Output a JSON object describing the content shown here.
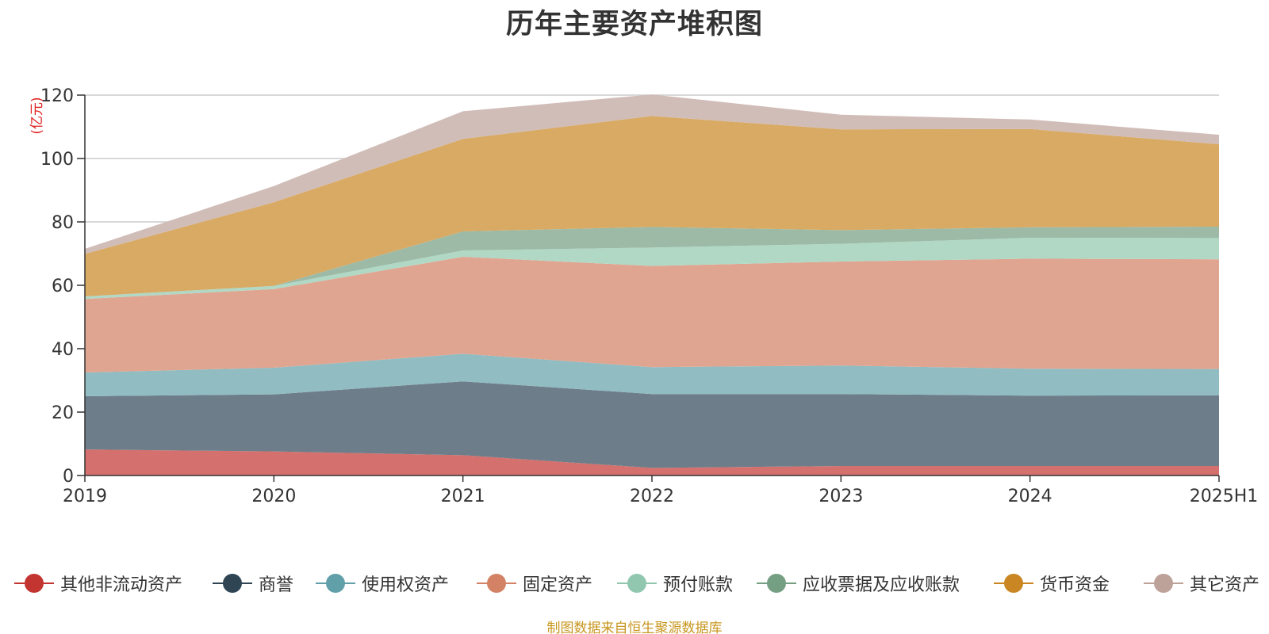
{
  "chart_data": {
    "type": "area",
    "stacked": true,
    "title": "历年主要资产堆积图",
    "unit": "(亿元)",
    "categories": [
      "2019",
      "2020",
      "2021",
      "2022",
      "2023",
      "2024",
      "2025H1"
    ],
    "ylim": [
      0,
      120
    ],
    "yticks": [
      0,
      20,
      40,
      60,
      80,
      100,
      120
    ],
    "grid": true,
    "legend_position": "bottom",
    "series": [
      {
        "name": "其他非流动资产",
        "color": "#c23531",
        "fill": "#d4706d",
        "values": [
          8.2,
          7.6,
          6.4,
          2.4,
          3.0,
          3.0,
          3.0
        ]
      },
      {
        "name": "商誉",
        "color": "#2f4554",
        "fill": "#6d7d89",
        "values": [
          16.8,
          18.0,
          23.3,
          23.3,
          22.7,
          22.2,
          22.3
        ]
      },
      {
        "name": "使用权资产",
        "color": "#61a0a8",
        "fill": "#90bcc2",
        "values": [
          7.5,
          8.4,
          8.7,
          8.5,
          9.0,
          8.5,
          8.3
        ]
      },
      {
        "name": "固定资产",
        "color": "#d48265",
        "fill": "#e0a590",
        "values": [
          23.2,
          24.8,
          30.6,
          31.9,
          32.8,
          34.7,
          34.6
        ]
      },
      {
        "name": "预付账款",
        "color": "#91c7ae",
        "fill": "#b0d8c5",
        "values": [
          0.8,
          1.0,
          2.0,
          5.8,
          5.6,
          6.6,
          6.7
        ]
      },
      {
        "name": "应收票据及应收账款",
        "color": "#749f83",
        "fill": "#9cbaa6",
        "values": [
          0.0,
          0.0,
          6.0,
          6.5,
          4.3,
          3.3,
          3.6
        ]
      },
      {
        "name": "货币资金",
        "color": "#ca8622",
        "fill": "#d8aa64",
        "values": [
          13.4,
          26.4,
          29.2,
          35.0,
          31.8,
          31.0,
          26.0
        ]
      },
      {
        "name": "其它资产",
        "color": "#bda29a",
        "fill": "#d1bdb8",
        "values": [
          1.6,
          5.1,
          8.7,
          6.8,
          4.6,
          3.0,
          3.0
        ]
      }
    ]
  },
  "footer": {
    "source": "制图数据来自恒生聚源数据库"
  }
}
